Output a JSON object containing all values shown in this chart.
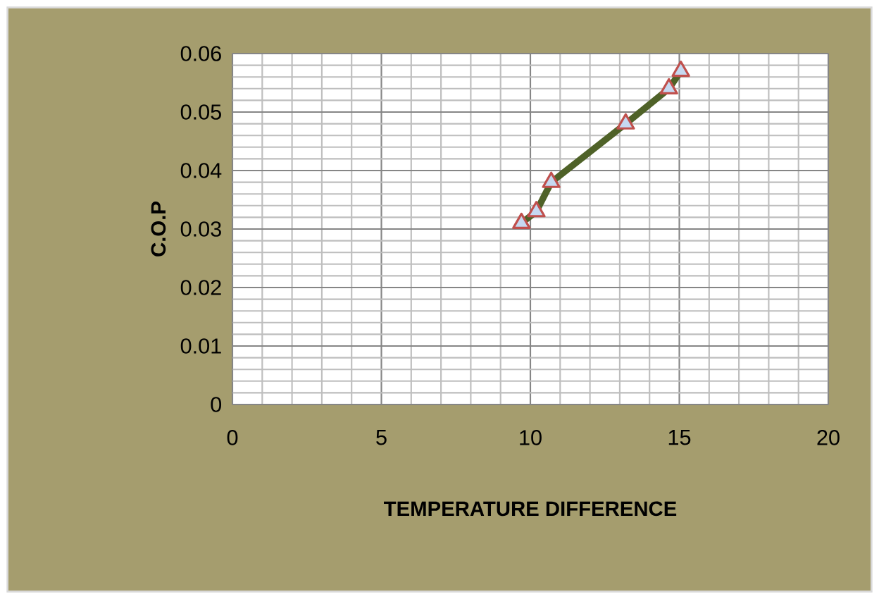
{
  "chart_data": {
    "type": "line",
    "xlabel": "TEMPERATURE DIFFERENCE",
    "ylabel": "C.O.P",
    "x": [
      9.7,
      10.2,
      10.7,
      13.2,
      14.65,
      15.05
    ],
    "series": [
      {
        "color": "#4f6228",
        "values": [
          0.031,
          0.033,
          0.038,
          0.048,
          0.054,
          0.057
        ]
      }
    ],
    "xlim": [
      0,
      20
    ],
    "ylim": [
      0,
      0.06
    ],
    "xticks": [
      0,
      5,
      10,
      15,
      20
    ],
    "yticks": [
      0,
      0.01,
      0.02,
      0.03,
      0.04,
      0.05,
      0.06
    ],
    "grid": true,
    "marker": "triangle",
    "line_style": "solid"
  }
}
